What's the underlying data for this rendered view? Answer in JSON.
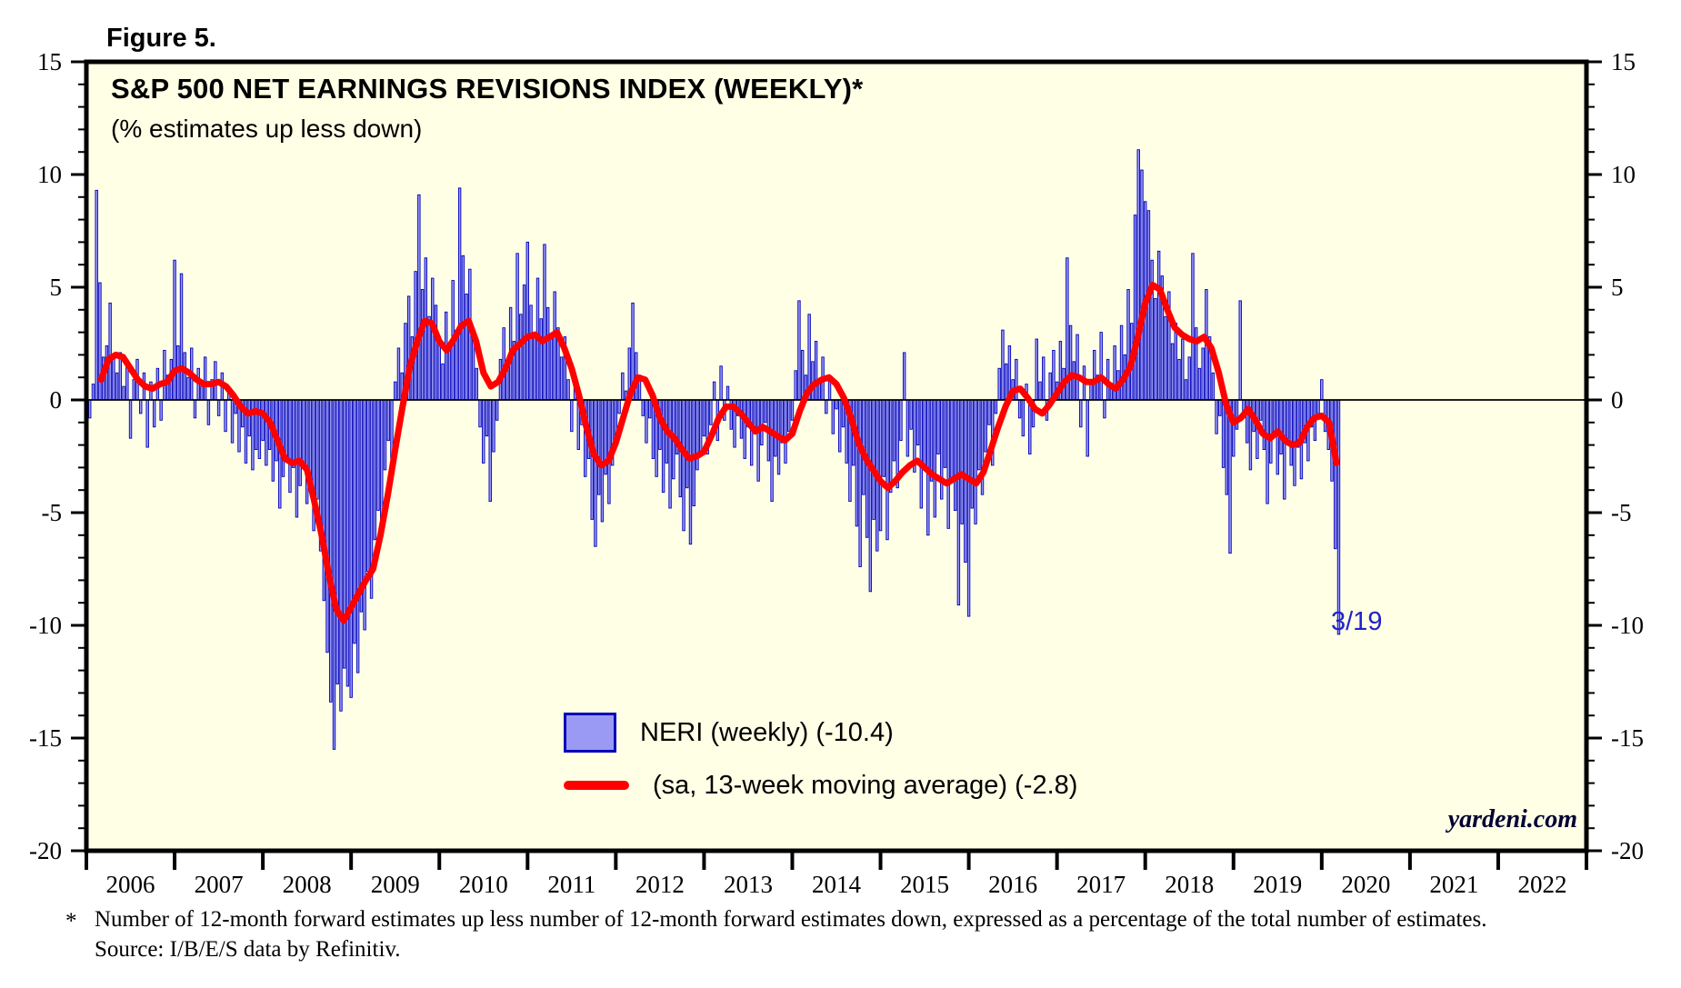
{
  "figure_label": "Figure 5.",
  "title": "S&P 500 NET EARNINGS REVISIONS INDEX (WEEKLY)*",
  "subtitle": "(% estimates up less down)",
  "watermark": "yardeni.com",
  "annotation_label": "3/19",
  "legend": {
    "neri_label": "NERI (weekly) (-10.4)",
    "ma_label": "(sa, 13-week moving average) (-2.8)"
  },
  "footnote": {
    "marker": "*",
    "line1": "Number of 12-month forward estimates up less number of 12-month forward estimates down, expressed as a percentage of the total number of estimates.",
    "line2": "Source: I/B/E/S data by Refinitiv."
  },
  "colors": {
    "plot_bg": "#ffffe6",
    "bar_fill": "#9a9af5",
    "bar_stroke": "#0000bb",
    "ma_line": "#ff0000",
    "frame": "#000000",
    "annotation": "#2222cc",
    "watermark_color": "#000033"
  },
  "chart_data": {
    "type": "bar",
    "title": "S&P 500 NET EARNINGS REVISIONS INDEX (WEEKLY)*",
    "subtitle": "(% estimates up less down)",
    "ylabel": "% estimates up less down",
    "ylim": [
      -20,
      15
    ],
    "xlim": [
      2006,
      2023
    ],
    "grid": false,
    "legend_position": "inside-bottom-center",
    "y_major_ticks": [
      15,
      10,
      5,
      0,
      -5,
      -10,
      -15,
      -20
    ],
    "y_minor_step": 1,
    "x_year_labels": [
      "2006",
      "2007",
      "2008",
      "2009",
      "2010",
      "2011",
      "2012",
      "2013",
      "2014",
      "2015",
      "2016",
      "2017",
      "2018",
      "2019",
      "2020",
      "2021",
      "2022"
    ],
    "series": [
      {
        "name": "NERI (weekly)",
        "type": "bar",
        "latest_value": -10.4,
        "x_start": 2006.0,
        "x_step": 0.0384615,
        "values": [
          1.5,
          -0.8,
          0.7,
          9.3,
          5.2,
          1.9,
          2.4,
          4.3,
          2.0,
          1.2,
          2.1,
          0.6,
          1.5,
          -1.7,
          0.9,
          1.8,
          -0.6,
          1.2,
          -2.1,
          0.8,
          -1.2,
          1.4,
          -0.9,
          2.2,
          1.1,
          1.8,
          6.2,
          2.4,
          5.6,
          2.1,
          1.0,
          2.3,
          -0.8,
          1.4,
          0.6,
          1.9,
          -1.1,
          0.9,
          1.7,
          -0.7,
          1.2,
          -1.4,
          0.4,
          -1.9,
          -0.6,
          -2.3,
          -1.2,
          -2.8,
          -1.6,
          -3.1,
          -2.2,
          -2.6,
          -1.8,
          -2.9,
          -2.2,
          -3.6,
          -2.7,
          -4.8,
          -3.4,
          -2.5,
          -4.1,
          -3.0,
          -5.2,
          -3.8,
          -2.9,
          -4.6,
          -3.5,
          -5.8,
          -4.4,
          -6.7,
          -8.9,
          -11.2,
          -13.4,
          -15.5,
          -12.6,
          -13.8,
          -11.9,
          -12.7,
          -13.2,
          -10.8,
          -12.1,
          -9.4,
          -10.2,
          -7.6,
          -8.8,
          -6.2,
          -4.9,
          -5.7,
          -3.1,
          -1.8,
          -2.6,
          0.8,
          2.3,
          1.2,
          3.4,
          4.6,
          2.8,
          5.7,
          9.1,
          4.9,
          6.3,
          3.7,
          5.4,
          4.2,
          2.8,
          1.6,
          3.9,
          2.2,
          5.3,
          3.1,
          9.4,
          6.4,
          4.7,
          5.8,
          2.9,
          1.4,
          -1.2,
          -2.8,
          -1.6,
          -4.5,
          -2.3,
          -0.9,
          1.8,
          3.2,
          1.7,
          4.1,
          2.6,
          6.5,
          3.8,
          5.1,
          7.0,
          4.2,
          2.9,
          5.4,
          3.6,
          6.9,
          4.1,
          2.7,
          4.8,
          3.2,
          1.9,
          2.8,
          0.9,
          -1.4,
          0.6,
          -2.2,
          -1.1,
          -3.4,
          -2.6,
          -5.3,
          -6.5,
          -4.2,
          -5.4,
          -3.3,
          -4.6,
          -2.9,
          -1.8,
          -0.6,
          1.2,
          0.4,
          2.3,
          4.3,
          2.1,
          1.1,
          -0.7,
          -1.9,
          -0.8,
          -2.6,
          -3.4,
          -2.2,
          -4.1,
          -2.8,
          -4.8,
          -3.5,
          -2.4,
          -4.3,
          -5.8,
          -3.9,
          -6.4,
          -4.7,
          -3.1,
          -2.3,
          -1.6,
          -2.4,
          -1.1,
          0.8,
          -1.8,
          1.5,
          -0.9,
          0.6,
          -1.3,
          -2.1,
          -0.7,
          -1.7,
          -2.6,
          -1.2,
          -2.9,
          -1.5,
          -3.6,
          -2.0,
          -1.0,
          -2.7,
          -4.5,
          -2.5,
          -3.3,
          -1.9,
          -2.8,
          -1.4,
          -0.9,
          1.3,
          4.4,
          2.2,
          1.1,
          3.8,
          1.7,
          2.6,
          0.8,
          1.9,
          -0.6,
          0.9,
          -1.5,
          -0.4,
          -2.3,
          -1.2,
          -2.8,
          -4.5,
          -2.9,
          -5.6,
          -7.4,
          -4.2,
          -6.1,
          -8.5,
          -5.3,
          -6.7,
          -5.8,
          -3.4,
          -6.2,
          -4.1,
          -2.7,
          -3.9,
          -1.8,
          2.1,
          -2.5,
          -1.3,
          -3.2,
          -2.0,
          -4.8,
          -2.9,
          -6.0,
          -3.6,
          -5.2,
          -2.4,
          -4.4,
          -3.0,
          -5.7,
          -3.5,
          -4.9,
          -9.1,
          -5.5,
          -7.2,
          -9.6,
          -4.8,
          -5.5,
          -3.1,
          -4.2,
          -2.3,
          -1.1,
          -2.9,
          -0.6,
          1.4,
          3.1,
          1.6,
          2.4,
          0.9,
          1.8,
          -0.8,
          -1.6,
          0.7,
          -2.4,
          -1.2,
          2.7,
          0.8,
          1.9,
          -0.9,
          1.2,
          2.2,
          0.8,
          2.6,
          1.4,
          6.3,
          3.3,
          1.7,
          2.9,
          -1.2,
          1.5,
          -2.5,
          0.9,
          2.2,
          1.1,
          3.0,
          -0.8,
          1.8,
          0.6,
          2.4,
          1.3,
          3.3,
          2.0,
          4.9,
          3.4,
          8.2,
          11.1,
          10.2,
          8.8,
          8.4,
          6.2,
          4.5,
          6.6,
          5.5,
          3.7,
          4.8,
          2.5,
          3.4,
          1.8,
          2.7,
          0.9,
          1.9,
          6.5,
          3.2,
          1.4,
          2.3,
          4.9,
          2.8,
          1.2,
          -1.5,
          -0.7,
          -3.0,
          -4.2,
          -6.8,
          -2.5,
          -1.3,
          4.4,
          -0.8,
          -1.9,
          -3.1,
          -1.4,
          -2.6,
          -0.9,
          -2.2,
          -4.6,
          -2.8,
          -1.6,
          -3.3,
          -2.4,
          -4.4,
          -1.7,
          -2.9,
          -3.8,
          -2.1,
          -3.5,
          -1.9,
          -2.7,
          -1.2,
          -1.8,
          -0.6,
          0.9,
          -1.4,
          -2.2,
          -3.6,
          -6.6,
          -10.4
        ]
      },
      {
        "name": "sa, 13-week moving average",
        "type": "line",
        "latest_value": -2.8,
        "x_start": 2006.1667,
        "x_step": 0.0833333,
        "values": [
          0.9,
          1.8,
          2.0,
          1.9,
          1.4,
          0.9,
          0.6,
          0.5,
          0.7,
          0.8,
          1.3,
          1.4,
          1.2,
          0.9,
          0.7,
          0.7,
          0.8,
          0.6,
          0.2,
          -0.3,
          -0.6,
          -0.5,
          -0.6,
          -1.0,
          -1.8,
          -2.6,
          -2.8,
          -2.7,
          -3.1,
          -4.5,
          -6.0,
          -7.8,
          -9.3,
          -9.8,
          -9.2,
          -8.6,
          -8.0,
          -7.5,
          -6.0,
          -4.2,
          -2.2,
          -0.3,
          1.5,
          2.6,
          3.5,
          3.4,
          2.6,
          2.2,
          2.7,
          3.3,
          3.5,
          2.6,
          1.2,
          0.6,
          0.8,
          1.4,
          2.2,
          2.5,
          2.8,
          2.9,
          2.6,
          2.8,
          3.0,
          2.3,
          1.4,
          0.2,
          -1.2,
          -2.4,
          -2.9,
          -2.7,
          -1.9,
          -0.8,
          0.3,
          1.0,
          0.9,
          0.2,
          -0.8,
          -1.4,
          -1.7,
          -2.2,
          -2.6,
          -2.5,
          -2.3,
          -1.6,
          -0.8,
          -0.3,
          -0.3,
          -0.6,
          -1.0,
          -1.4,
          -1.2,
          -1.4,
          -1.6,
          -1.8,
          -1.5,
          -0.5,
          0.3,
          0.7,
          0.9,
          1.0,
          0.7,
          0.1,
          -0.8,
          -1.9,
          -2.6,
          -3.1,
          -3.6,
          -3.9,
          -3.6,
          -3.2,
          -2.9,
          -2.7,
          -3.0,
          -3.3,
          -3.5,
          -3.7,
          -3.5,
          -3.3,
          -3.5,
          -3.7,
          -3.2,
          -2.2,
          -1.2,
          -0.3,
          0.4,
          0.5,
          0.1,
          -0.4,
          -0.6,
          -0.2,
          0.3,
          0.8,
          1.1,
          1.0,
          0.8,
          0.8,
          1.0,
          0.7,
          0.5,
          0.9,
          1.5,
          2.8,
          4.3,
          5.1,
          4.9,
          4.0,
          3.2,
          2.9,
          2.7,
          2.6,
          2.8,
          2.3,
          1.2,
          -0.2,
          -1.0,
          -0.8,
          -0.4,
          -0.9,
          -1.5,
          -1.7,
          -1.4,
          -1.8,
          -2.0,
          -1.9,
          -1.2,
          -0.8,
          -0.7,
          -1.0,
          -2.8
        ]
      }
    ]
  }
}
